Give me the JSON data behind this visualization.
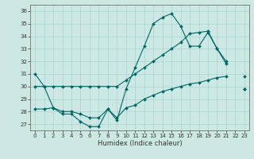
{
  "xlabel": "Humidex (Indice chaleur)",
  "bg_color": "#cce8e4",
  "line_color": "#006666",
  "grid_color": "#aad4d0",
  "xlim": [
    -0.5,
    23.5
  ],
  "ylim": [
    26.5,
    36.5
  ],
  "yticks": [
    27,
    28,
    29,
    30,
    31,
    32,
    33,
    34,
    35,
    36
  ],
  "xticks": [
    0,
    1,
    2,
    3,
    4,
    5,
    6,
    7,
    8,
    9,
    10,
    11,
    12,
    13,
    14,
    15,
    16,
    17,
    18,
    19,
    20,
    21,
    22,
    23
  ],
  "line1_y": [
    31.0,
    30.0,
    28.3,
    27.8,
    27.8,
    27.2,
    26.8,
    26.8,
    28.2,
    27.3,
    29.8,
    31.5,
    33.2,
    35.0,
    35.5,
    35.8,
    34.8,
    33.2,
    33.2,
    34.3,
    33.0,
    31.8,
    null,
    30.8
  ],
  "line2_y": [
    30.0,
    30.0,
    30.0,
    30.0,
    30.0,
    30.0,
    30.0,
    30.0,
    30.0,
    30.0,
    30.5,
    31.0,
    31.5,
    32.0,
    32.5,
    33.0,
    33.5,
    34.2,
    34.3,
    34.4,
    33.0,
    32.0,
    null,
    29.8
  ],
  "line3_y": [
    28.2,
    28.2,
    28.3,
    28.0,
    28.0,
    27.8,
    27.5,
    27.5,
    28.2,
    27.5,
    28.3,
    28.5,
    29.0,
    29.3,
    29.6,
    29.8,
    30.0,
    30.2,
    30.3,
    30.5,
    30.7,
    30.8,
    null,
    29.8
  ]
}
